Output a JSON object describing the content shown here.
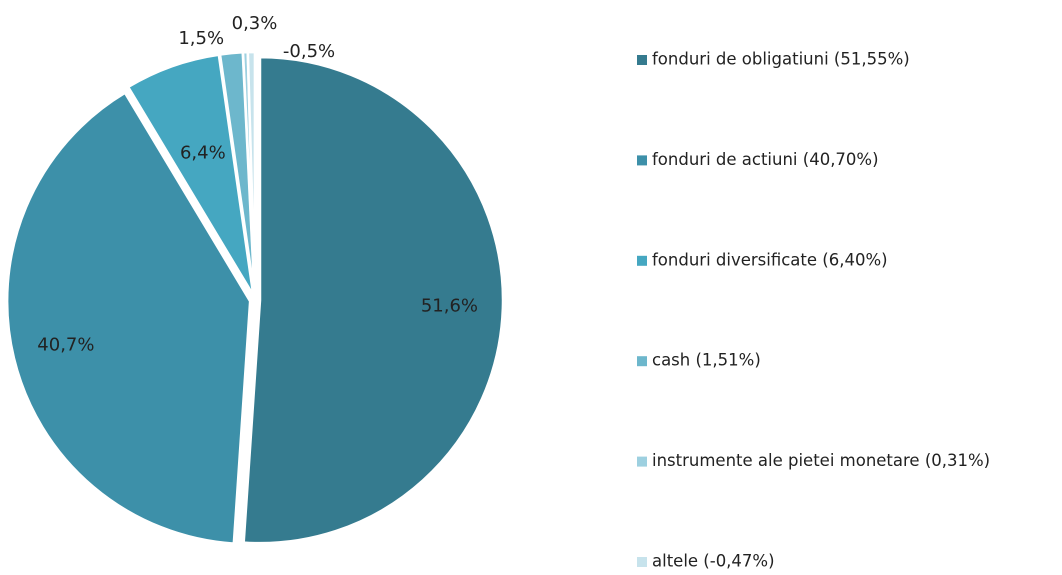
{
  "chart_data": {
    "type": "pie",
    "categories": [
      "fonduri de obligatiuni (51,55%)",
      "fonduri de actiuni (40,70%)",
      "fonduri diversificate (6,40%)",
      "cash (1,51%)",
      "instrumente ale pietei monetare (0,31%)",
      "altele (-0,47%)"
    ],
    "values": [
      51.55,
      40.7,
      6.4,
      1.51,
      0.31,
      -0.47
    ],
    "value_labels": [
      "51,6%",
      "40,7%",
      "6,4%",
      "1,5%",
      "0,3%",
      "-0,5%"
    ],
    "colors": [
      "#357b8f",
      "#3d90a9",
      "#45a7c1",
      "#6db7cc",
      "#9dd0e0",
      "#c7e3ec"
    ],
    "legend": "right"
  }
}
